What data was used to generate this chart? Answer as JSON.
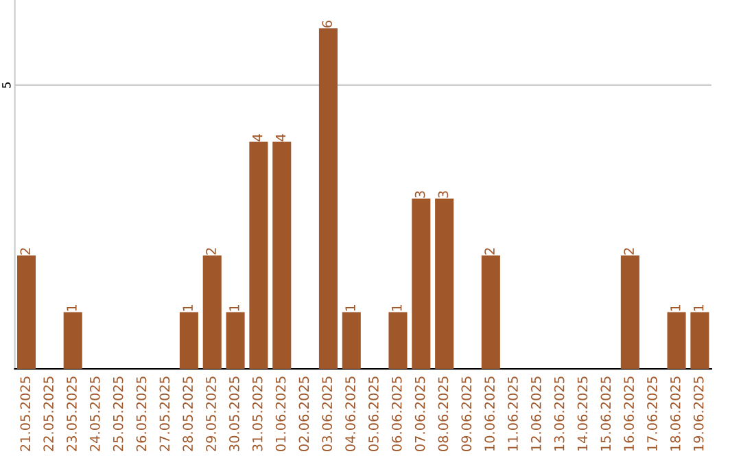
{
  "chart_data": {
    "type": "bar",
    "categories": [
      "21.05.2025",
      "22.05.2025",
      "23.05.2025",
      "24.05.2025",
      "25.05.2025",
      "26.05.2025",
      "27.05.2025",
      "28.05.2025",
      "29.05.2025",
      "30.05.2025",
      "31.05.2025",
      "01.06.2025",
      "02.06.2025",
      "03.06.2025",
      "04.06.2025",
      "05.06.2025",
      "06.06.2025",
      "07.06.2025",
      "08.06.2025",
      "09.06.2025",
      "10.06.2025",
      "11.06.2025",
      "12.06.2025",
      "13.06.2025",
      "14.06.2025",
      "15.06.2025",
      "16.06.2025",
      "17.06.2025",
      "18.06.2025",
      "19.06.2025"
    ],
    "values": [
      2,
      0,
      1,
      0,
      0,
      0,
      0,
      1,
      2,
      1,
      4,
      4,
      0,
      6,
      1,
      0,
      1,
      3,
      3,
      0,
      2,
      0,
      0,
      0,
      0,
      0,
      2,
      0,
      1,
      1
    ],
    "value_labels": [
      "2",
      null,
      "1",
      null,
      null,
      null,
      null,
      "1",
      "2",
      "1",
      "4",
      "4",
      null,
      "6",
      "1",
      null,
      "1",
      "3",
      "3",
      null,
      "2",
      null,
      null,
      null,
      null,
      null,
      "2",
      null,
      "1",
      "1"
    ],
    "color": "#a0572a",
    "ylim": [
      0,
      6.5
    ],
    "yticks": [
      5
    ],
    "grid": "y"
  }
}
